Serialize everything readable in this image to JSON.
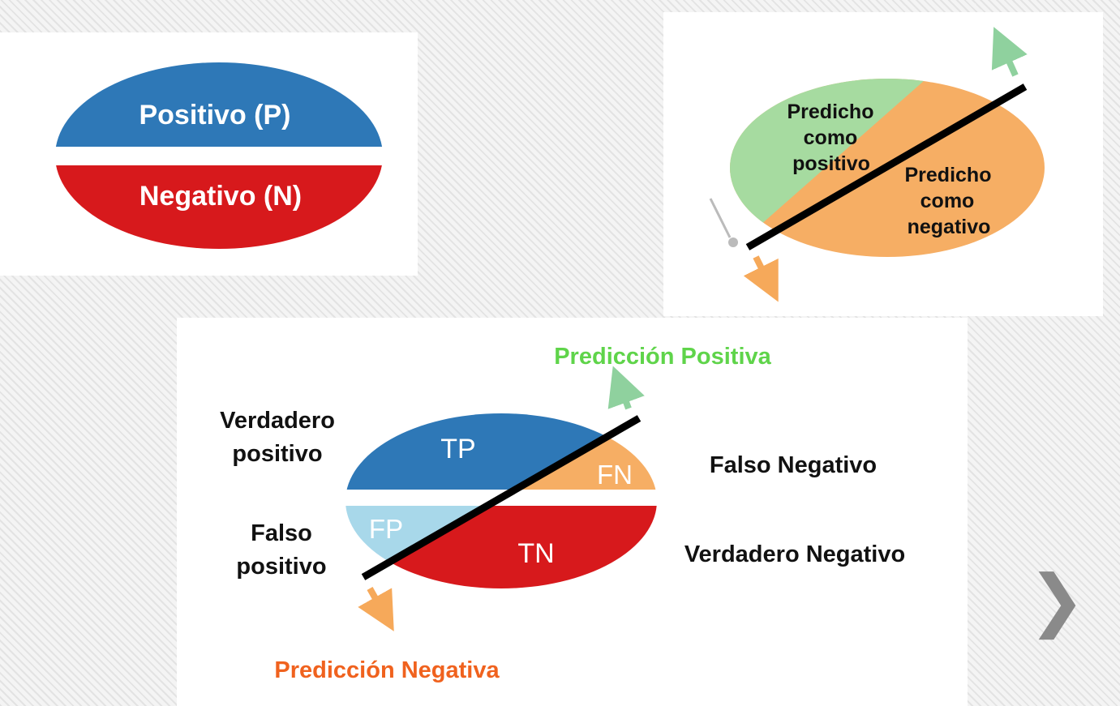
{
  "panel1": {
    "positive_label": "Positivo (P)",
    "negative_label": "Negativo (N)"
  },
  "panel2": {
    "predicted_positive": [
      "Predicho",
      "como",
      "positivo"
    ],
    "predicted_negative": [
      "Predicho",
      "como",
      "negativo"
    ]
  },
  "panel3": {
    "tp": "TP",
    "fn": "FN",
    "fp": "FP",
    "tn": "TN",
    "positive_prediction": "Predicción Positiva",
    "negative_prediction": "Predicción Negativa",
    "true_positive": [
      "Verdadero",
      "positivo"
    ],
    "false_positive": [
      "Falso",
      "positivo"
    ],
    "false_negative": "Falso Negativo",
    "true_negative": "Verdadero Negativo"
  },
  "nav": {
    "next_symbol": "❯"
  },
  "colors": {
    "positive_blue": "#2e78b7",
    "negative_red": "#d7191c",
    "predicted_positive_green": "#a6dba0",
    "predicted_negative_orange": "#f6ae64",
    "false_positive_lightblue": "#a8d8ea",
    "positive_prediction_text": "#5fd44a",
    "negative_prediction_text": "#f0621e",
    "arrow_green": "#8fd19e",
    "arrow_orange": "#f6a95a"
  }
}
